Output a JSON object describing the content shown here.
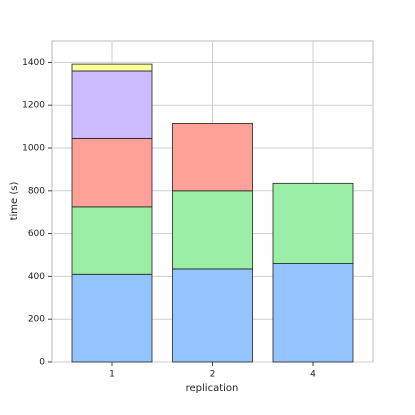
{
  "chart_data": {
    "type": "stacked_bar",
    "x_label": "replication",
    "y_label": "time (s)",
    "categories": [
      "1",
      "2",
      "4"
    ],
    "series": [
      {
        "color": "#93c4fd",
        "values": [
          410,
          435,
          460
        ]
      },
      {
        "color": "#9aeea6",
        "values": [
          315,
          365,
          375
        ]
      },
      {
        "color": "#ffa099",
        "values": [
          320,
          315,
          null
        ]
      },
      {
        "color": "#ccbbff",
        "values": [
          315,
          null,
          null
        ]
      },
      {
        "color": "#ffff99",
        "values": [
          32,
          null,
          null
        ]
      }
    ],
    "ylim": [
      0,
      1500
    ],
    "yticks": [
      0,
      200,
      400,
      600,
      800,
      1000,
      1200,
      1400
    ],
    "grid": true
  }
}
